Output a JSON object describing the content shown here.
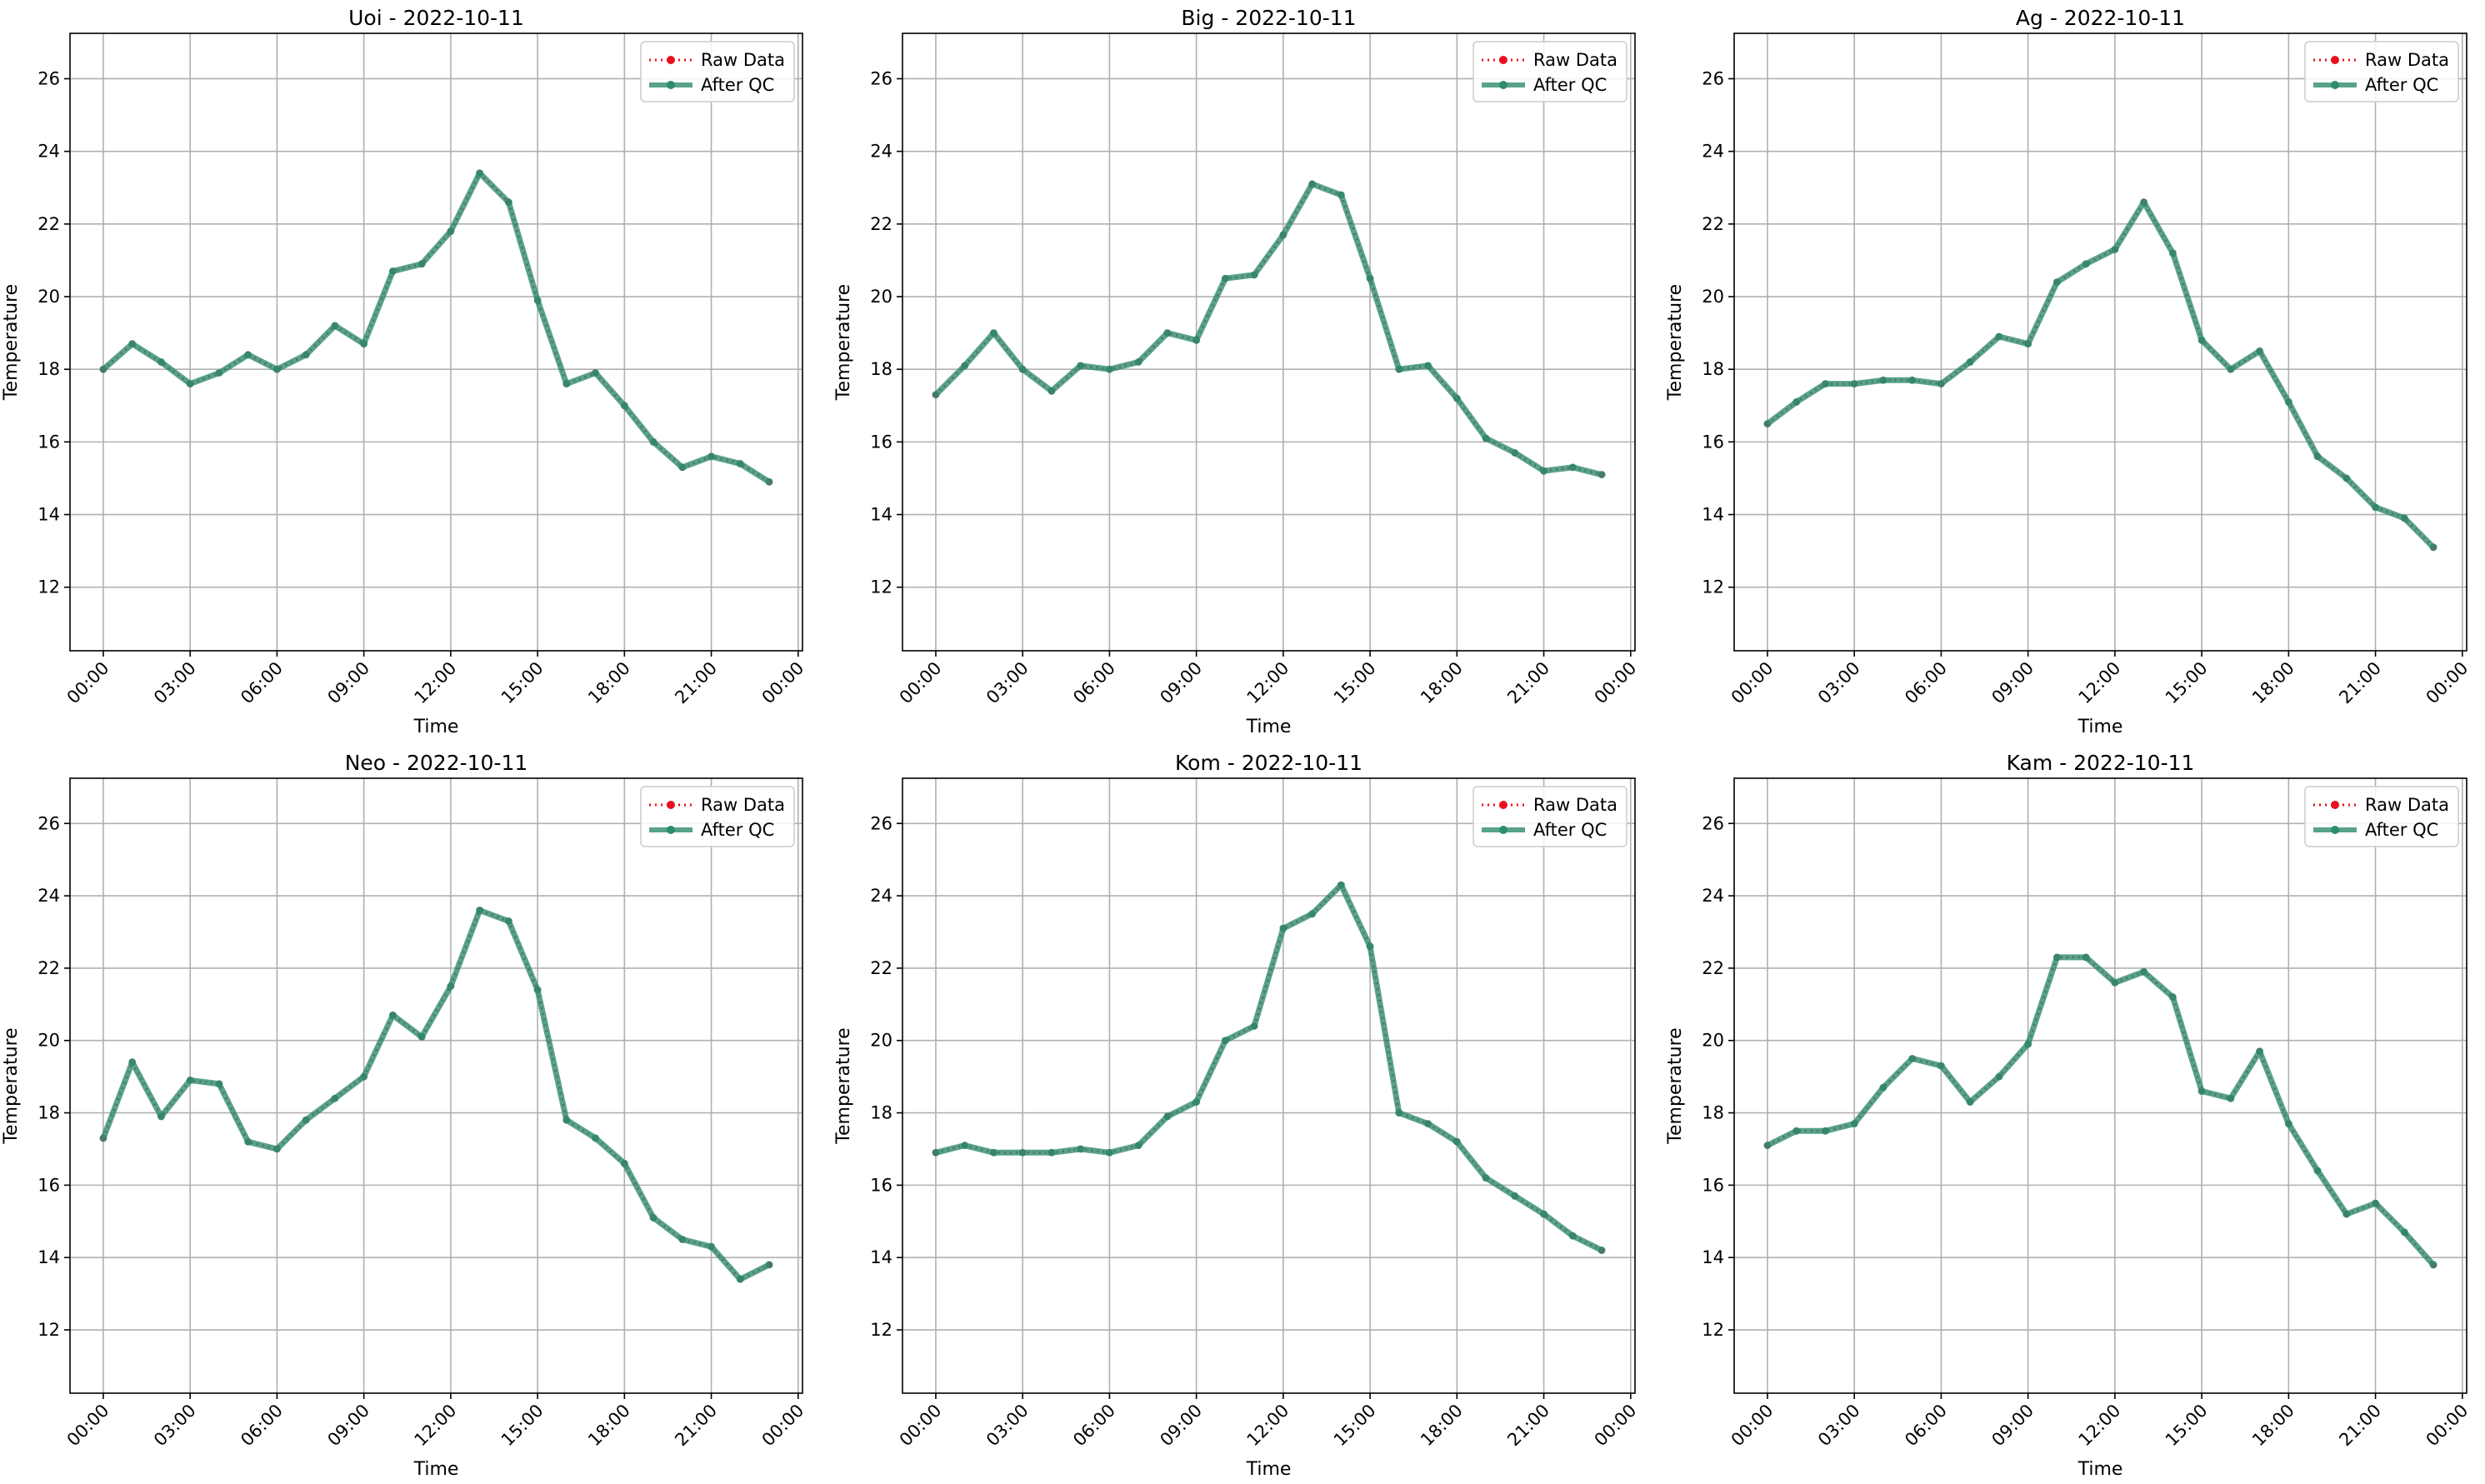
{
  "figure": {
    "background": "#ffffff"
  },
  "legend": {
    "raw_label": "Raw Data",
    "qc_label": "After QC",
    "placement": "upper right"
  },
  "colors": {
    "raw": "#e8121e",
    "qc": "#2e8b6f",
    "qc_alpha": 0.8,
    "grid": "#b0b0b0"
  },
  "chart_data": [
    {
      "type": "line",
      "title": "Uoi - 2022-10-11",
      "xlabel": "Time",
      "ylabel": "Temperature",
      "x_unit": "hours",
      "xlim": [
        -1.15,
        24.15
      ],
      "ylim": [
        10.25,
        27.25
      ],
      "xticks": [
        0,
        3,
        6,
        9,
        12,
        15,
        18,
        21,
        24
      ],
      "xtick_labels": [
        "00:00",
        "03:00",
        "06:00",
        "09:00",
        "12:00",
        "15:00",
        "18:00",
        "21:00",
        "00:00"
      ],
      "yticks": [
        12,
        14,
        16,
        18,
        20,
        22,
        24,
        26
      ],
      "grid": true,
      "x": [
        0,
        1,
        2,
        3,
        4,
        5,
        6,
        7,
        8,
        9,
        10,
        11,
        12,
        13,
        14,
        15,
        16,
        17,
        18,
        19,
        20,
        21,
        22,
        23
      ],
      "series": [
        {
          "name": "Raw Data",
          "values": [
            18.0,
            18.7,
            18.2,
            17.6,
            17.9,
            18.4,
            18.0,
            18.4,
            19.2,
            18.7,
            20.7,
            20.9,
            21.8,
            23.4,
            22.6,
            19.9,
            17.6,
            17.9,
            17.0,
            16.0,
            15.3,
            15.6,
            15.4,
            14.9
          ]
        },
        {
          "name": "After QC",
          "values": [
            18.0,
            18.7,
            18.2,
            17.6,
            17.9,
            18.4,
            18.0,
            18.4,
            19.2,
            18.7,
            20.7,
            20.9,
            21.8,
            23.4,
            22.6,
            19.9,
            17.6,
            17.9,
            17.0,
            16.0,
            15.3,
            15.6,
            15.4,
            14.9
          ]
        }
      ]
    },
    {
      "type": "line",
      "title": "Big - 2022-10-11",
      "xlabel": "Time",
      "ylabel": "Temperature",
      "x_unit": "hours",
      "xlim": [
        -1.15,
        24.15
      ],
      "ylim": [
        10.25,
        27.25
      ],
      "xticks": [
        0,
        3,
        6,
        9,
        12,
        15,
        18,
        21,
        24
      ],
      "xtick_labels": [
        "00:00",
        "03:00",
        "06:00",
        "09:00",
        "12:00",
        "15:00",
        "18:00",
        "21:00",
        "00:00"
      ],
      "yticks": [
        12,
        14,
        16,
        18,
        20,
        22,
        24,
        26
      ],
      "grid": true,
      "x": [
        0,
        1,
        2,
        3,
        4,
        5,
        6,
        7,
        8,
        9,
        10,
        11,
        12,
        13,
        14,
        15,
        16,
        17,
        18,
        19,
        20,
        21,
        22,
        23
      ],
      "series": [
        {
          "name": "Raw Data",
          "values": [
            17.3,
            18.1,
            19.0,
            18.0,
            17.4,
            18.1,
            18.0,
            18.2,
            19.0,
            18.8,
            20.5,
            20.6,
            21.7,
            23.1,
            22.8,
            20.5,
            18.0,
            18.1,
            17.2,
            16.1,
            15.7,
            15.2,
            15.3,
            15.1
          ]
        },
        {
          "name": "After QC",
          "values": [
            17.3,
            18.1,
            19.0,
            18.0,
            17.4,
            18.1,
            18.0,
            18.2,
            19.0,
            18.8,
            20.5,
            20.6,
            21.7,
            23.1,
            22.8,
            20.5,
            18.0,
            18.1,
            17.2,
            16.1,
            15.7,
            15.2,
            15.3,
            15.1
          ]
        }
      ]
    },
    {
      "type": "line",
      "title": "Ag - 2022-10-11",
      "xlabel": "Time",
      "ylabel": "Temperature",
      "x_unit": "hours",
      "xlim": [
        -1.15,
        24.15
      ],
      "ylim": [
        10.25,
        27.25
      ],
      "xticks": [
        0,
        3,
        6,
        9,
        12,
        15,
        18,
        21,
        24
      ],
      "xtick_labels": [
        "00:00",
        "03:00",
        "06:00",
        "09:00",
        "12:00",
        "15:00",
        "18:00",
        "21:00",
        "00:00"
      ],
      "yticks": [
        12,
        14,
        16,
        18,
        20,
        22,
        24,
        26
      ],
      "grid": true,
      "x": [
        0,
        1,
        2,
        3,
        4,
        5,
        6,
        7,
        8,
        9,
        10,
        11,
        12,
        13,
        14,
        15,
        16,
        17,
        18,
        19,
        20,
        21,
        22,
        23
      ],
      "series": [
        {
          "name": "Raw Data",
          "values": [
            16.5,
            17.1,
            17.6,
            17.6,
            17.7,
            17.7,
            17.6,
            18.2,
            18.9,
            18.7,
            20.4,
            20.9,
            21.3,
            22.6,
            21.2,
            18.8,
            18.0,
            18.5,
            17.1,
            15.6,
            15.0,
            14.2,
            13.9,
            13.1
          ]
        },
        {
          "name": "After QC",
          "values": [
            16.5,
            17.1,
            17.6,
            17.6,
            17.7,
            17.7,
            17.6,
            18.2,
            18.9,
            18.7,
            20.4,
            20.9,
            21.3,
            22.6,
            21.2,
            18.8,
            18.0,
            18.5,
            17.1,
            15.6,
            15.0,
            14.2,
            13.9,
            13.1
          ]
        }
      ]
    },
    {
      "type": "line",
      "title": "Neo - 2022-10-11",
      "xlabel": "Time",
      "ylabel": "Temperature",
      "x_unit": "hours",
      "xlim": [
        -1.15,
        24.15
      ],
      "ylim": [
        10.25,
        27.25
      ],
      "xticks": [
        0,
        3,
        6,
        9,
        12,
        15,
        18,
        21,
        24
      ],
      "xtick_labels": [
        "00:00",
        "03:00",
        "06:00",
        "09:00",
        "12:00",
        "15:00",
        "18:00",
        "21:00",
        "00:00"
      ],
      "yticks": [
        12,
        14,
        16,
        18,
        20,
        22,
        24,
        26
      ],
      "grid": true,
      "x": [
        0,
        1,
        2,
        3,
        4,
        5,
        6,
        7,
        8,
        9,
        10,
        11,
        12,
        13,
        14,
        15,
        16,
        17,
        18,
        19,
        20,
        21,
        22,
        23
      ],
      "series": [
        {
          "name": "Raw Data",
          "values": [
            17.3,
            19.4,
            17.9,
            18.9,
            18.8,
            17.2,
            17.0,
            17.8,
            18.4,
            19.0,
            20.7,
            20.1,
            21.5,
            23.6,
            23.3,
            21.4,
            17.8,
            17.3,
            16.6,
            15.1,
            14.5,
            14.3,
            13.4,
            13.8
          ]
        },
        {
          "name": "After QC",
          "values": [
            17.3,
            19.4,
            17.9,
            18.9,
            18.8,
            17.2,
            17.0,
            17.8,
            18.4,
            19.0,
            20.7,
            20.1,
            21.5,
            23.6,
            23.3,
            21.4,
            17.8,
            17.3,
            16.6,
            15.1,
            14.5,
            14.3,
            13.4,
            13.8
          ]
        }
      ]
    },
    {
      "type": "line",
      "title": "Kom - 2022-10-11",
      "xlabel": "Time",
      "ylabel": "Temperature",
      "x_unit": "hours",
      "xlim": [
        -1.15,
        24.15
      ],
      "ylim": [
        10.25,
        27.25
      ],
      "xticks": [
        0,
        3,
        6,
        9,
        12,
        15,
        18,
        21,
        24
      ],
      "xtick_labels": [
        "00:00",
        "03:00",
        "06:00",
        "09:00",
        "12:00",
        "15:00",
        "18:00",
        "21:00",
        "00:00"
      ],
      "yticks": [
        12,
        14,
        16,
        18,
        20,
        22,
        24,
        26
      ],
      "grid": true,
      "x": [
        0,
        1,
        2,
        3,
        4,
        5,
        6,
        7,
        8,
        9,
        10,
        11,
        12,
        13,
        14,
        15,
        16,
        17,
        18,
        19,
        20,
        21,
        22,
        23
      ],
      "series": [
        {
          "name": "Raw Data",
          "values": [
            16.9,
            17.1,
            16.9,
            16.9,
            16.9,
            17.0,
            16.9,
            17.1,
            17.9,
            18.3,
            20.0,
            20.4,
            23.1,
            23.5,
            24.3,
            22.6,
            18.0,
            17.7,
            17.2,
            16.2,
            15.7,
            15.2,
            14.6,
            14.2
          ]
        },
        {
          "name": "After QC",
          "values": [
            16.9,
            17.1,
            16.9,
            16.9,
            16.9,
            17.0,
            16.9,
            17.1,
            17.9,
            18.3,
            20.0,
            20.4,
            23.1,
            23.5,
            24.3,
            22.6,
            18.0,
            17.7,
            17.2,
            16.2,
            15.7,
            15.2,
            14.6,
            14.2
          ]
        }
      ]
    },
    {
      "type": "line",
      "title": "Kam - 2022-10-11",
      "xlabel": "Time",
      "ylabel": "Temperature",
      "x_unit": "hours",
      "xlim": [
        -1.15,
        24.15
      ],
      "ylim": [
        10.25,
        27.25
      ],
      "xticks": [
        0,
        3,
        6,
        9,
        12,
        15,
        18,
        21,
        24
      ],
      "xtick_labels": [
        "00:00",
        "03:00",
        "06:00",
        "09:00",
        "12:00",
        "15:00",
        "18:00",
        "21:00",
        "00:00"
      ],
      "yticks": [
        12,
        14,
        16,
        18,
        20,
        22,
        24,
        26
      ],
      "grid": true,
      "x": [
        0,
        1,
        2,
        3,
        4,
        5,
        6,
        7,
        8,
        9,
        10,
        11,
        12,
        13,
        14,
        15,
        16,
        17,
        18,
        19,
        20,
        21,
        22,
        23
      ],
      "series": [
        {
          "name": "Raw Data",
          "values": [
            17.1,
            17.5,
            17.5,
            17.7,
            18.7,
            19.5,
            19.3,
            18.3,
            19.0,
            19.9,
            22.3,
            22.3,
            21.6,
            21.9,
            21.2,
            18.6,
            18.4,
            19.7,
            17.7,
            16.4,
            15.2,
            15.5,
            14.7,
            13.8
          ]
        },
        {
          "name": "After QC",
          "values": [
            17.1,
            17.5,
            17.5,
            17.7,
            18.7,
            19.5,
            19.3,
            18.3,
            19.0,
            19.9,
            22.3,
            22.3,
            21.6,
            21.9,
            21.2,
            18.6,
            18.4,
            19.7,
            17.7,
            16.4,
            15.2,
            15.5,
            14.7,
            13.8
          ]
        }
      ]
    }
  ]
}
